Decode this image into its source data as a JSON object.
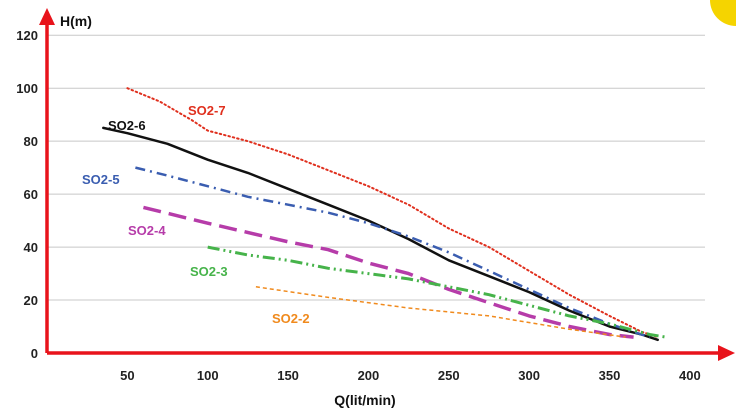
{
  "chart_data": {
    "type": "line",
    "title": "",
    "xlabel": "Q(lit/min)",
    "ylabel": "H(m)",
    "xlim": [
      0,
      420
    ],
    "ylim": [
      0,
      125
    ],
    "x_ticks": [
      50,
      100,
      150,
      200,
      250,
      300,
      350,
      400
    ],
    "y_ticks": [
      0,
      20,
      40,
      60,
      80,
      100,
      120
    ],
    "grid": "horizontal",
    "axis_color": "#e8131b",
    "corner_circle_color": "#f5d400",
    "series": [
      {
        "name": "SO2-7",
        "color": "#e0301e",
        "style": "dotted",
        "label_color": "#e0301e",
        "x": [
          50,
          70,
          90,
          100,
          125,
          150,
          175,
          200,
          225,
          250,
          275,
          300,
          325,
          350,
          370,
          380
        ],
        "y": [
          100,
          95,
          88,
          84,
          80,
          75,
          69,
          63,
          56,
          47,
          40,
          31,
          22,
          14,
          8,
          6
        ]
      },
      {
        "name": "SO2-6",
        "color": "#111111",
        "style": "solid",
        "label_color": "#111111",
        "x": [
          35,
          50,
          75,
          100,
          125,
          150,
          175,
          200,
          225,
          250,
          275,
          300,
          325,
          350,
          370,
          380
        ],
        "y": [
          85,
          83,
          79,
          73,
          68,
          62,
          56,
          50,
          43,
          35,
          29,
          23,
          16,
          10,
          7,
          5
        ]
      },
      {
        "name": "SO2-5",
        "color": "#3a5db0",
        "style": "dash-dot",
        "label_color": "#3a5db0",
        "x": [
          55,
          75,
          100,
          125,
          150,
          175,
          200,
          225,
          250,
          275,
          300,
          325,
          350,
          375
        ],
        "y": [
          70,
          67,
          63,
          59,
          56,
          53,
          49,
          44,
          38,
          31,
          24,
          17,
          11,
          6
        ]
      },
      {
        "name": "SO2-4",
        "color": "#b63ca9",
        "style": "long-dash",
        "label_color": "#b63ca9",
        "x": [
          60,
          100,
          150,
          175,
          200,
          225,
          250,
          275,
          300,
          325,
          350,
          365
        ],
        "y": [
          55,
          49,
          42,
          39,
          34,
          30,
          24,
          19,
          14,
          10,
          7,
          6
        ]
      },
      {
        "name": "SO2-3",
        "color": "#46b34a",
        "style": "dash-dot-dot",
        "label_color": "#46b34a",
        "x": [
          100,
          125,
          150,
          175,
          200,
          225,
          250,
          275,
          300,
          325,
          350,
          375,
          385
        ],
        "y": [
          40,
          37,
          35,
          32,
          30,
          28,
          25,
          22,
          18,
          14,
          11,
          7,
          6
        ]
      },
      {
        "name": "SO2-2",
        "color": "#f08a1d",
        "style": "short-dash",
        "label_color": "#f08a1d",
        "x": [
          130,
          175,
          225,
          275,
          325,
          360
        ],
        "y": [
          25,
          21,
          17,
          14,
          9,
          6
        ]
      }
    ]
  }
}
